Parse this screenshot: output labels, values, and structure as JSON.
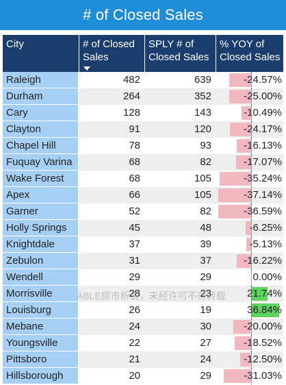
{
  "title": "# of Closed Sales",
  "columns": {
    "city": "City",
    "closed_sales": "# of Closed Sales",
    "sply": "SPLY # of Closed Sales",
    "yoy": "% YOY of Closed Sales"
  },
  "sort": {
    "column": "closed_sales",
    "direction": "descending"
  },
  "watermark": "ABLE房市析说，未经许可不得转载",
  "colors": {
    "title_bg": "#1f8dd6",
    "header_bg": "#1a3d6e",
    "city_bg": "#a6cff4",
    "negative_bar": "#f2b8c0",
    "positive_bar": "#5fd35f"
  },
  "chart_data": {
    "type": "table",
    "title": "# of Closed Sales",
    "rows": [
      {
        "city": "Raleigh",
        "closed_sales": 482,
        "sply": 639,
        "yoy": "-24.57%",
        "yoy_value": -24.57
      },
      {
        "city": "Durham",
        "closed_sales": 264,
        "sply": 352,
        "yoy": "-25.00%",
        "yoy_value": -25.0
      },
      {
        "city": "Cary",
        "closed_sales": 128,
        "sply": 143,
        "yoy": "-10.49%",
        "yoy_value": -10.49
      },
      {
        "city": "Clayton",
        "closed_sales": 91,
        "sply": 120,
        "yoy": "-24.17%",
        "yoy_value": -24.17
      },
      {
        "city": "Chapel Hill",
        "closed_sales": 78,
        "sply": 93,
        "yoy": "-16.13%",
        "yoy_value": -16.13
      },
      {
        "city": "Fuquay Varina",
        "closed_sales": 68,
        "sply": 82,
        "yoy": "-17.07%",
        "yoy_value": -17.07
      },
      {
        "city": "Wake Forest",
        "closed_sales": 68,
        "sply": 105,
        "yoy": "-35.24%",
        "yoy_value": -35.24
      },
      {
        "city": "Apex",
        "closed_sales": 66,
        "sply": 105,
        "yoy": "-37.14%",
        "yoy_value": -37.14
      },
      {
        "city": "Garner",
        "closed_sales": 52,
        "sply": 82,
        "yoy": "-36.59%",
        "yoy_value": -36.59
      },
      {
        "city": "Holly Springs",
        "closed_sales": 45,
        "sply": 48,
        "yoy": "-6.25%",
        "yoy_value": -6.25
      },
      {
        "city": "Knightdale",
        "closed_sales": 37,
        "sply": 39,
        "yoy": "-5.13%",
        "yoy_value": -5.13
      },
      {
        "city": "Zebulon",
        "closed_sales": 31,
        "sply": 37,
        "yoy": "-16.22%",
        "yoy_value": -16.22
      },
      {
        "city": "Wendell",
        "closed_sales": 29,
        "sply": 29,
        "yoy": "0.00%",
        "yoy_value": 0.0
      },
      {
        "city": "Morrisville",
        "closed_sales": 28,
        "sply": 23,
        "yoy": "21.74%",
        "yoy_value": 21.74
      },
      {
        "city": "Louisburg",
        "closed_sales": 26,
        "sply": 19,
        "yoy": "36.84%",
        "yoy_value": 36.84
      },
      {
        "city": "Mebane",
        "closed_sales": 24,
        "sply": 30,
        "yoy": "-20.00%",
        "yoy_value": -20.0
      },
      {
        "city": "Youngsville",
        "closed_sales": 22,
        "sply": 27,
        "yoy": "-18.52%",
        "yoy_value": -18.52
      },
      {
        "city": "Pittsboro",
        "closed_sales": 21,
        "sply": 24,
        "yoy": "-12.50%",
        "yoy_value": -12.5
      },
      {
        "city": "Hillsborough",
        "closed_sales": 20,
        "sply": 29,
        "yoy": "-31.03%",
        "yoy_value": -31.03
      }
    ]
  }
}
